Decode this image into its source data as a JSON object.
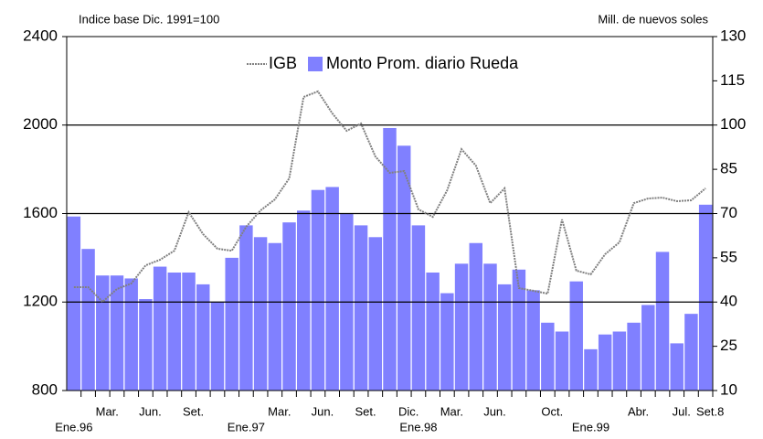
{
  "chart_data": {
    "type": "bar_line",
    "y_label": "Indice base Dic. 1991=100",
    "y2_label": "Mill. de nuevos soles",
    "categories": [
      "Ene.96",
      null,
      "Mar.",
      null,
      null,
      "Jun.",
      null,
      null,
      "Set.",
      null,
      null,
      null,
      "Ene.97",
      null,
      "Mar.",
      null,
      null,
      "Jun.",
      null,
      null,
      "Set.",
      null,
      null,
      "Dic.",
      "Ene.98",
      null,
      "Mar.",
      null,
      null,
      "Jun.",
      null,
      null,
      null,
      "Oct.",
      null,
      null,
      "Ene.99",
      null,
      null,
      "Abr.",
      null,
      null,
      "Jul.",
      null,
      "Set.8"
    ],
    "series": [
      {
        "name": "IGB",
        "color": "#808080",
        "axis": "y",
        "kind": "line",
        "values": [
          1267,
          1267,
          1201,
          1259,
          1284,
          1366,
          1391,
          1432,
          1606,
          1507,
          1441,
          1432,
          1540,
          1614,
          1664,
          1759,
          2127,
          2152,
          2053,
          1974,
          2007,
          1858,
          1784,
          1792,
          1619,
          1585,
          1705,
          1891,
          1817,
          1647,
          1714,
          1263,
          1251,
          1238,
          1573,
          1342,
          1325,
          1416,
          1470,
          1647,
          1668,
          1672,
          1656,
          1660,
          1714
        ]
      },
      {
        "name": "Monto Prom. diario Rueda",
        "color": "#8080ff",
        "axis": "y2",
        "kind": "bar",
        "values": [
          69,
          58,
          49,
          49,
          48,
          41,
          52,
          50,
          50,
          46,
          40,
          55,
          66,
          62,
          60,
          67,
          71,
          78,
          79,
          70,
          66,
          62,
          99,
          93,
          66,
          50,
          43,
          53,
          60,
          53,
          46,
          51,
          44,
          33,
          30,
          47,
          24,
          29,
          30,
          33,
          39,
          57,
          26,
          36,
          73
        ]
      }
    ],
    "ylim": [
      800,
      2400
    ],
    "yticks": [
      800,
      1200,
      1600,
      2000,
      2400
    ],
    "y2lim": [
      10,
      130
    ],
    "y2ticks": [
      10,
      25,
      40,
      55,
      70,
      85,
      100,
      115,
      130
    ],
    "grid": true
  }
}
